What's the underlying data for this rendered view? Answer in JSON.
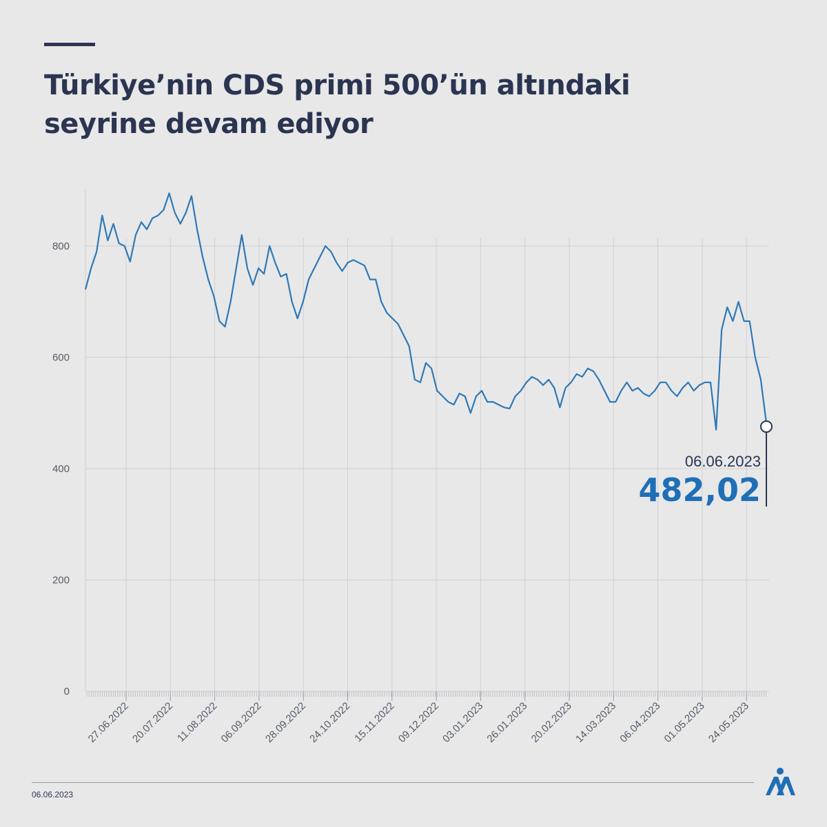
{
  "header": {
    "title_line1": "Türkiye’nin CDS primi 500’ün altındaki",
    "title_line2": "seyrine devam ediyor"
  },
  "footer": {
    "date": "06.06.2023"
  },
  "logo": {
    "text": "AA",
    "color": "#1f6fb6"
  },
  "colors": {
    "line": "#2f78b5",
    "callout_value": "#1f6fb6",
    "text": "#2b3551",
    "grid": "#cfd0d4"
  },
  "chart_data": {
    "type": "line",
    "title": "Türkiye’nin CDS primi 500’ün altındaki seyrine devam ediyor",
    "xlabel": "",
    "ylabel": "",
    "ylim": [
      0,
      900
    ],
    "yticks": [
      0,
      200,
      400,
      600,
      800
    ],
    "xtick_labels": [
      "27.06.2022",
      "20.07.2022",
      "11.08.2022",
      "06.09.2022",
      "28.09.2022",
      "24.10.2022",
      "15.11.2022",
      "09.12.2022",
      "03.01.2023",
      "26.01.2023",
      "20.02.2023",
      "14.03.2023",
      "06.04.2023",
      "01.05.2023",
      "24.05.2023"
    ],
    "grid": true,
    "series": [
      {
        "values": [
          722,
          760,
          790,
          855,
          810,
          840,
          805,
          800,
          772,
          820,
          843,
          830,
          850,
          855,
          865,
          895,
          860,
          840,
          860,
          890,
          830,
          780,
          740,
          710,
          665,
          655,
          700,
          760,
          820,
          760,
          730,
          760,
          750,
          800,
          770,
          745,
          750,
          700,
          670,
          700,
          740,
          760,
          780,
          800,
          790,
          770,
          755,
          770,
          775,
          770,
          765,
          740,
          740,
          700,
          680,
          670,
          660,
          640,
          620,
          560,
          555,
          590,
          580,
          540,
          530,
          520,
          515,
          535,
          530,
          500,
          530,
          540,
          520,
          520,
          515,
          510,
          508,
          530,
          540,
          555,
          565,
          560,
          550,
          560,
          545,
          510,
          545,
          555,
          570,
          565,
          580,
          575,
          560,
          540,
          520,
          520,
          540,
          555,
          540,
          545,
          535,
          530,
          540,
          555,
          555,
          540,
          530,
          545,
          555,
          540,
          550,
          555,
          555,
          470,
          650,
          690,
          665,
          700,
          665,
          665,
          600,
          560,
          482
        ]
      }
    ],
    "last_point": {
      "date": "06.06.2023",
      "value": "482,02"
    }
  }
}
